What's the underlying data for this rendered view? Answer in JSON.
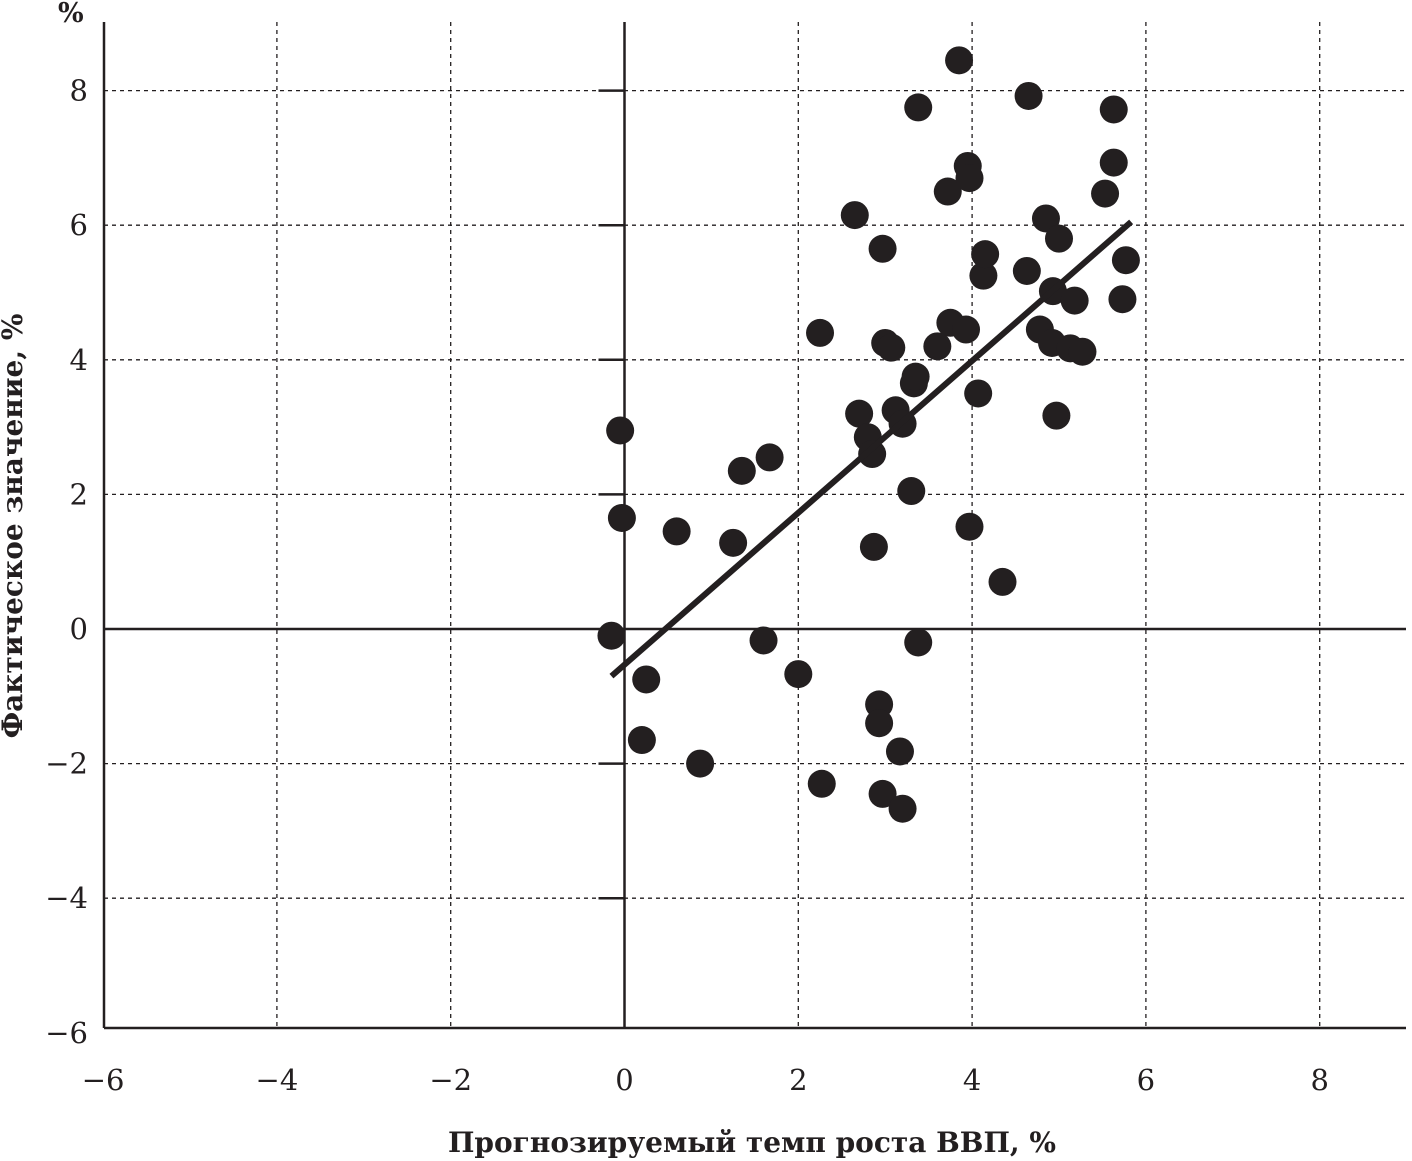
{
  "chart_data": {
    "type": "scatter",
    "xlabel": "Прогнозируемый темп роста ВВП, %",
    "ylabel": "Фактическое значение, %",
    "y_unit": "%",
    "xlim": [
      -6,
      9
    ],
    "ylim": [
      -6,
      9
    ],
    "x_ticks": [
      -6,
      -4,
      -2,
      0,
      2,
      4,
      6,
      8
    ],
    "y_ticks": [
      -6,
      -4,
      -2,
      0,
      2,
      4,
      6,
      8
    ],
    "x_tick_labels": [
      "−6",
      "−4",
      "−2",
      "0",
      "2",
      "4",
      "6",
      "8"
    ],
    "y_tick_labels": [
      "−6",
      "−4",
      "−2",
      "0",
      "2",
      "4",
      "6",
      "8"
    ],
    "grid": true,
    "points": [
      {
        "x": -0.15,
        "y": -0.1
      },
      {
        "x": -0.05,
        "y": 2.95
      },
      {
        "x": -0.03,
        "y": 1.65
      },
      {
        "x": 0.25,
        "y": -0.75
      },
      {
        "x": 0.2,
        "y": -1.65
      },
      {
        "x": 0.6,
        "y": 1.45
      },
      {
        "x": 0.87,
        "y": -2.0
      },
      {
        "x": 1.25,
        "y": 1.28
      },
      {
        "x": 1.35,
        "y": 2.35
      },
      {
        "x": 1.67,
        "y": 2.55
      },
      {
        "x": 1.6,
        "y": -0.17
      },
      {
        "x": 2.0,
        "y": -0.67
      },
      {
        "x": 2.25,
        "y": 4.4
      },
      {
        "x": 2.27,
        "y": -2.3
      },
      {
        "x": 2.65,
        "y": 6.15
      },
      {
        "x": 2.7,
        "y": 3.2
      },
      {
        "x": 2.8,
        "y": 2.85
      },
      {
        "x": 2.85,
        "y": 2.6
      },
      {
        "x": 2.87,
        "y": 1.22
      },
      {
        "x": 2.93,
        "y": -1.12
      },
      {
        "x": 2.93,
        "y": -1.4
      },
      {
        "x": 2.97,
        "y": -2.45
      },
      {
        "x": 2.97,
        "y": 5.65
      },
      {
        "x": 3.0,
        "y": 4.25
      },
      {
        "x": 3.07,
        "y": 4.18
      },
      {
        "x": 3.12,
        "y": 3.25
      },
      {
        "x": 3.17,
        "y": -1.82
      },
      {
        "x": 3.2,
        "y": 3.05
      },
      {
        "x": 3.2,
        "y": -2.67
      },
      {
        "x": 3.3,
        "y": 2.05
      },
      {
        "x": 3.33,
        "y": 3.65
      },
      {
        "x": 3.35,
        "y": 3.75
      },
      {
        "x": 3.38,
        "y": 7.75
      },
      {
        "x": 3.38,
        "y": -0.2
      },
      {
        "x": 3.6,
        "y": 4.2
      },
      {
        "x": 3.72,
        "y": 6.5
      },
      {
        "x": 3.75,
        "y": 4.55
      },
      {
        "x": 3.85,
        "y": 8.45
      },
      {
        "x": 3.93,
        "y": 4.45
      },
      {
        "x": 3.95,
        "y": 6.88
      },
      {
        "x": 3.97,
        "y": 6.7
      },
      {
        "x": 3.97,
        "y": 1.52
      },
      {
        "x": 4.07,
        "y": 3.5
      },
      {
        "x": 4.13,
        "y": 5.25
      },
      {
        "x": 4.15,
        "y": 5.57
      },
      {
        "x": 4.35,
        "y": 0.7
      },
      {
        "x": 4.63,
        "y": 5.32
      },
      {
        "x": 4.65,
        "y": 7.92
      },
      {
        "x": 4.78,
        "y": 4.45
      },
      {
        "x": 4.85,
        "y": 6.1
      },
      {
        "x": 4.92,
        "y": 4.25
      },
      {
        "x": 4.93,
        "y": 5.02
      },
      {
        "x": 4.97,
        "y": 3.17
      },
      {
        "x": 5.0,
        "y": 5.8
      },
      {
        "x": 5.13,
        "y": 4.17
      },
      {
        "x": 5.18,
        "y": 4.88
      },
      {
        "x": 5.27,
        "y": 4.12
      },
      {
        "x": 5.53,
        "y": 6.47
      },
      {
        "x": 5.63,
        "y": 6.93
      },
      {
        "x": 5.63,
        "y": 7.72
      },
      {
        "x": 5.73,
        "y": 4.9
      },
      {
        "x": 5.77,
        "y": 5.48
      }
    ],
    "trend_line": {
      "x": [
        -0.15,
        5.83
      ],
      "y": [
        -0.7,
        6.05
      ]
    }
  }
}
